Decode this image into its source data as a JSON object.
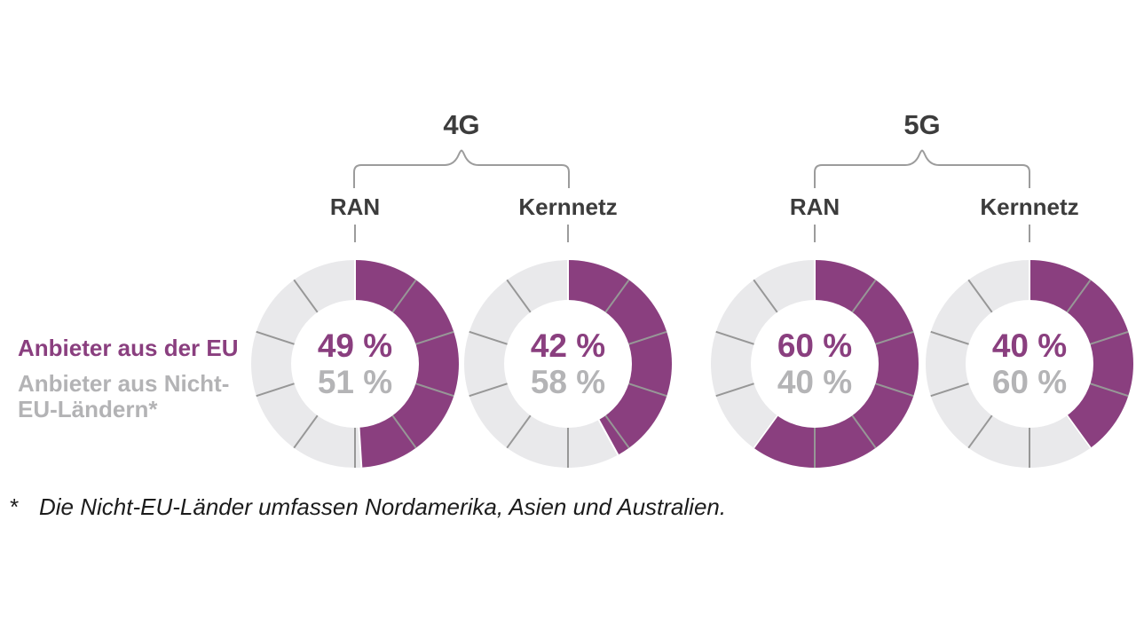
{
  "colors": {
    "purple": "#8a3f7f",
    "ring_gray": "#e9e9eb",
    "tick_gray": "#979797",
    "value_gray": "#b4b4b6",
    "label_dark": "#3c3c3c",
    "legend_gray": "#b3b3b5",
    "bracket_gray": "#9c9c9c",
    "footnote_dark": "#1c1c1c"
  },
  "legend": {
    "eu_label": "Anbieter aus der EU",
    "non_eu_line1": "Anbieter aus Nicht-",
    "non_eu_line2": "EU-Ländern*"
  },
  "groups": [
    {
      "label": "4G"
    },
    {
      "label": "5G"
    }
  ],
  "charts": [
    {
      "group": "4G",
      "label": "RAN",
      "eu": 49,
      "non_eu": 51,
      "eu_text": "49 %",
      "non_eu_text": "51 %"
    },
    {
      "group": "4G",
      "label": "Kernnetz",
      "eu": 42,
      "non_eu": 58,
      "eu_text": "42 %",
      "non_eu_text": "58 %"
    },
    {
      "group": "5G",
      "label": "RAN",
      "eu": 60,
      "non_eu": 40,
      "eu_text": "60 %",
      "non_eu_text": "40 %"
    },
    {
      "group": "5G",
      "label": "Kernnetz",
      "eu": 40,
      "non_eu": 60,
      "eu_text": "40 %",
      "non_eu_text": "60 %"
    }
  ],
  "footnote": {
    "marker": "*",
    "text": "Die Nicht-EU-Länder umfassen Nordamerika, Asien und Australien."
  },
  "chart_data": {
    "type": "pie",
    "subtype": "donut",
    "unit": "%",
    "legend": [
      "Anbieter aus der EU",
      "Anbieter aus Nicht-EU-Ländern*"
    ],
    "legend_position": "left",
    "segment_tick_interval_percent": 10,
    "charts": [
      {
        "group": "4G",
        "label": "RAN",
        "series": [
          {
            "name": "Anbieter aus der EU",
            "value": 49
          },
          {
            "name": "Anbieter aus Nicht-EU-Ländern*",
            "value": 51
          }
        ]
      },
      {
        "group": "4G",
        "label": "Kernnetz",
        "series": [
          {
            "name": "Anbieter aus der EU",
            "value": 42
          },
          {
            "name": "Anbieter aus Nicht-EU-Ländern*",
            "value": 58
          }
        ]
      },
      {
        "group": "5G",
        "label": "RAN",
        "series": [
          {
            "name": "Anbieter aus der EU",
            "value": 60
          },
          {
            "name": "Anbieter aus Nicht-EU-Ländern*",
            "value": 40
          }
        ]
      },
      {
        "group": "5G",
        "label": "Kernnetz",
        "series": [
          {
            "name": "Anbieter aus der EU",
            "value": 40
          },
          {
            "name": "Anbieter aus Nicht-EU-Ländern*",
            "value": 60
          }
        ]
      }
    ],
    "footnote": "* Die Nicht-EU-Länder umfassen Nordamerika, Asien und Australien."
  }
}
